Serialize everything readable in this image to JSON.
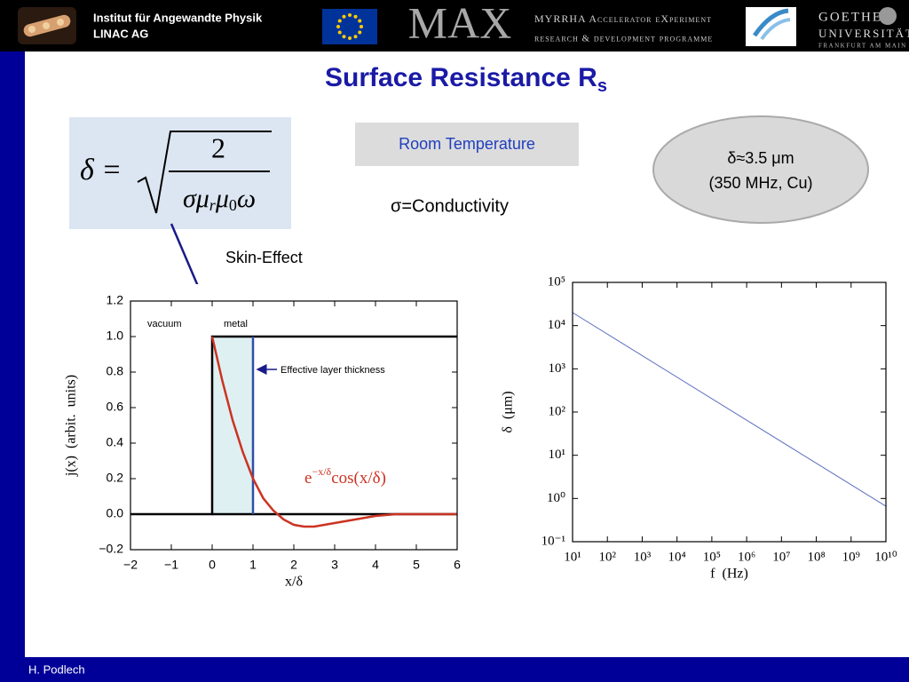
{
  "header": {
    "institute": [
      "Institut für Angewandte Physik",
      "LINAC AG"
    ],
    "project": "MAX",
    "project_lines": [
      "MYRRHA Accelerator eXperiment",
      "research & development programme"
    ],
    "university": [
      "GOETHE",
      "UNIVERSITÄT",
      "FRANKFURT AM MAIN"
    ]
  },
  "title": {
    "text": "Surface Resistance R",
    "subscript": "s"
  },
  "formula": {
    "lhs": "δ =",
    "numerator": "2",
    "denominator": [
      "σμ",
      "r",
      "μ",
      "0",
      "ω"
    ]
  },
  "room_temperature": "Room Temperature",
  "conductivity": "σ=Conductivity",
  "note": [
    "δ≈3.5 μm",
    "(350 MHz, Cu)"
  ],
  "skin_effect": "Skin-Effect",
  "footer": "H. Podlech",
  "chart_data": [
    {
      "type": "line",
      "xlabel": "x/δ",
      "ylabel": "j(x)  (arbit.  units)",
      "xlim": [
        -2,
        6
      ],
      "ylim": [
        -0.2,
        1.2
      ],
      "xticks": [
        {
          "value": -2,
          "label": "−2"
        },
        {
          "value": -1,
          "label": "−1"
        },
        0,
        1,
        2,
        3,
        4,
        5,
        6
      ],
      "yticks": [
        {
          "value": -0.2,
          "label": "−0.2"
        },
        {
          "value": 0,
          "label": "0.0"
        },
        0.2,
        0.4,
        0.6,
        0.8,
        {
          "value": 1,
          "label": "1.0"
        },
        1.2
      ],
      "annotations": {
        "vacuum": "vacuum",
        "metal": "metal",
        "layer": "Effective layer thickness",
        "curve": [
          "e",
          "−x/δ",
          "cos(x/δ)"
        ]
      },
      "series": [
        {
          "color": "#000000",
          "x": [
            -2,
            0,
            0,
            6
          ],
          "values": [
            0,
            0,
            1,
            1
          ]
        },
        {
          "color": "#000000",
          "x": [
            0,
            6
          ],
          "values": [
            0,
            0
          ]
        },
        {
          "color": "#2f4fa8",
          "x": [
            1,
            1
          ],
          "values": [
            0,
            1
          ]
        },
        {
          "color": "#cc3322",
          "x": [
            0,
            0.25,
            0.5,
            0.75,
            1,
            1.25,
            1.5,
            1.75,
            2,
            2.25,
            2.5,
            2.75,
            3,
            3.5,
            4,
            4.5,
            5,
            5.5,
            6
          ],
          "values": [
            1,
            0.75,
            0.53,
            0.35,
            0.2,
            0.09,
            0.02,
            -0.03,
            -0.06,
            -0.07,
            -0.07,
            -0.06,
            -0.05,
            -0.03,
            -0.01,
            0,
            0,
            0,
            0
          ]
        }
      ]
    },
    {
      "type": "line",
      "xscale": "log",
      "yscale": "log",
      "xlabel": "f  (Hz)",
      "ylabel": "δ  (μm)",
      "xlim": [
        10,
        10000000000
      ],
      "ylim": [
        0.1,
        100000
      ],
      "xticks": [
        {
          "value": 10,
          "label": "10¹"
        },
        {
          "value": 100,
          "label": "10²"
        },
        {
          "value": 1000,
          "label": "10³"
        },
        {
          "value": 10000,
          "label": "10⁴"
        },
        {
          "value": 100000,
          "label": "10⁵"
        },
        {
          "value": 1000000,
          "label": "10⁶"
        },
        {
          "value": 10000000,
          "label": "10⁷"
        },
        {
          "value": 100000000,
          "label": "10⁸"
        },
        {
          "value": 1000000000,
          "label": "10⁹"
        },
        {
          "value": 10000000000,
          "label": "10¹⁰"
        }
      ],
      "yticks": [
        {
          "value": 0.1,
          "label": "10⁻¹"
        },
        {
          "value": 1,
          "label": "10⁰"
        },
        {
          "value": 10,
          "label": "10¹"
        },
        {
          "value": 100,
          "label": "10²"
        },
        {
          "value": 1000,
          "label": "10³"
        },
        {
          "value": 10000,
          "label": "10⁴"
        },
        {
          "value": 100000,
          "label": "10⁵"
        }
      ],
      "series": [
        {
          "color": "#5a6fc0",
          "x": [
            10,
            10000000000
          ],
          "values": [
            20000,
            0.66
          ]
        }
      ]
    }
  ]
}
